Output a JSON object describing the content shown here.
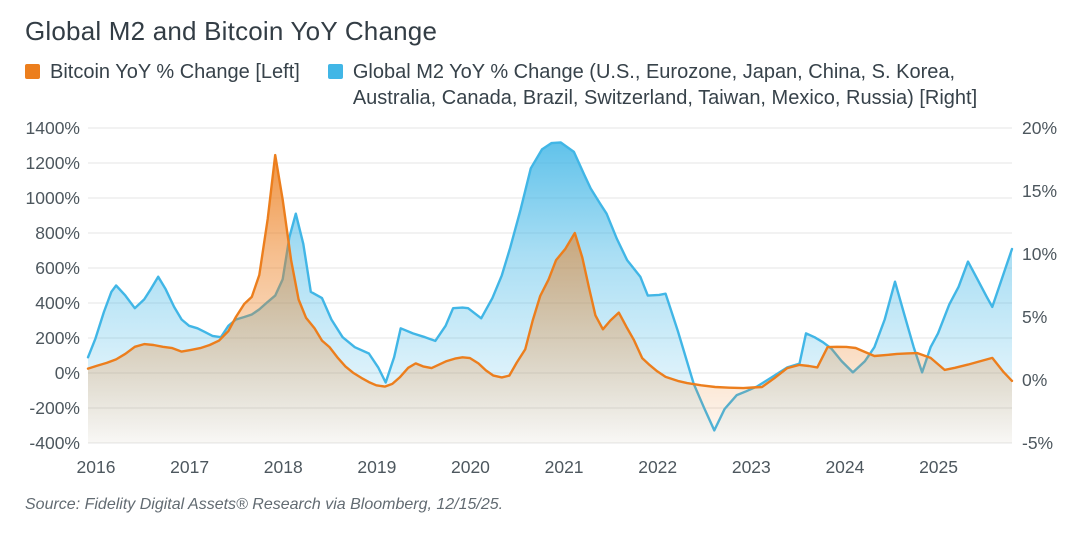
{
  "title": "Global M2 and Bitcoin YoY Change",
  "source": "Source: Fidelity Digital Assets® Research via Bloomberg, 12/15/25.",
  "legend": [
    {
      "label": "Bitcoin YoY % Change [Left]",
      "color": "#EC7E1D"
    },
    {
      "label": "Global M2 YoY % Change (U.S., Eurozone, Japan, China, S. Korea, Australia, Canada, Brazil, Switzerland, Taiwan, Mexico, Russia) [Right]",
      "color": "#41B6E6"
    }
  ],
  "colors": {
    "bitcoin_line": "#EC7E1D",
    "m2_line": "#41B6E6",
    "grid": "#e4e4e4",
    "axis_text": "#4d575e",
    "title_text": "#333d45"
  },
  "chart_data": {
    "type": "area",
    "title": "Global M2 and Bitcoin YoY Change",
    "grid": "horizontal",
    "legend_position": "top",
    "x_axis": {
      "min": 2016,
      "max": 2025.87,
      "ticks": [
        {
          "label": "2016",
          "value": 2016
        },
        {
          "label": "2017",
          "value": 2017
        },
        {
          "label": "2018",
          "value": 2018
        },
        {
          "label": "2019",
          "value": 2019
        },
        {
          "label": "2020",
          "value": 2020
        },
        {
          "label": "2021",
          "value": 2021
        },
        {
          "label": "2022",
          "value": 2022
        },
        {
          "label": "2023",
          "value": 2023
        },
        {
          "label": "2024",
          "value": 2024
        },
        {
          "label": "2025",
          "value": 2025
        }
      ]
    },
    "left_axis": {
      "series": "Bitcoin YoY % Change",
      "min": -400,
      "max": 1400,
      "ticks": [
        {
          "label": "1400%",
          "value": 1400
        },
        {
          "label": "1200%",
          "value": 1200
        },
        {
          "label": "1000%",
          "value": 1000
        },
        {
          "label": "800%",
          "value": 800
        },
        {
          "label": "600%",
          "value": 600
        },
        {
          "label": "400%",
          "value": 400
        },
        {
          "label": "200%",
          "value": 200
        },
        {
          "label": "0%",
          "value": 0
        },
        {
          "label": "-200%",
          "value": -200
        },
        {
          "label": "-400%",
          "value": -400
        }
      ]
    },
    "right_axis": {
      "series": "Global M2 YoY % Change",
      "min": -5,
      "max": 20,
      "ticks": [
        {
          "label": "20%",
          "value": 20
        },
        {
          "label": "15%",
          "value": 15
        },
        {
          "label": "10%",
          "value": 10
        },
        {
          "label": "5%",
          "value": 5
        },
        {
          "label": "0%",
          "value": 0
        },
        {
          "label": "-5%",
          "value": -5
        }
      ]
    },
    "series": [
      {
        "name": "Bitcoin YoY % Change [Left]",
        "axis": "left",
        "color": "#EC7E1D",
        "points": [
          [
            2016.0,
            25
          ],
          [
            2016.1,
            42
          ],
          [
            2016.2,
            58
          ],
          [
            2016.3,
            78
          ],
          [
            2016.4,
            110
          ],
          [
            2016.5,
            150
          ],
          [
            2016.6,
            165
          ],
          [
            2016.7,
            160
          ],
          [
            2016.8,
            150
          ],
          [
            2016.9,
            142
          ],
          [
            2017.0,
            122
          ],
          [
            2017.1,
            132
          ],
          [
            2017.2,
            142
          ],
          [
            2017.3,
            160
          ],
          [
            2017.4,
            185
          ],
          [
            2017.5,
            240
          ],
          [
            2017.58,
            320
          ],
          [
            2017.67,
            395
          ],
          [
            2017.75,
            435
          ],
          [
            2017.83,
            560
          ],
          [
            2017.92,
            880
          ],
          [
            2018.0,
            1245
          ],
          [
            2018.08,
            990
          ],
          [
            2018.17,
            645
          ],
          [
            2018.25,
            420
          ],
          [
            2018.33,
            315
          ],
          [
            2018.42,
            255
          ],
          [
            2018.5,
            185
          ],
          [
            2018.58,
            148
          ],
          [
            2018.67,
            85
          ],
          [
            2018.75,
            38
          ],
          [
            2018.83,
            2
          ],
          [
            2018.92,
            -28
          ],
          [
            2019.0,
            -52
          ],
          [
            2019.08,
            -70
          ],
          [
            2019.17,
            -78
          ],
          [
            2019.25,
            -62
          ],
          [
            2019.33,
            -25
          ],
          [
            2019.42,
            30
          ],
          [
            2019.5,
            55
          ],
          [
            2019.58,
            38
          ],
          [
            2019.67,
            28
          ],
          [
            2019.75,
            48
          ],
          [
            2019.83,
            68
          ],
          [
            2019.92,
            82
          ],
          [
            2020.0,
            90
          ],
          [
            2020.08,
            85
          ],
          [
            2020.17,
            55
          ],
          [
            2020.25,
            15
          ],
          [
            2020.33,
            -15
          ],
          [
            2020.42,
            -25
          ],
          [
            2020.5,
            -15
          ],
          [
            2020.58,
            60
          ],
          [
            2020.67,
            135
          ],
          [
            2020.75,
            300
          ],
          [
            2020.83,
            440
          ],
          [
            2020.92,
            535
          ],
          [
            2021.0,
            645
          ],
          [
            2021.1,
            710
          ],
          [
            2021.2,
            800
          ],
          [
            2021.28,
            660
          ],
          [
            2021.35,
            490
          ],
          [
            2021.42,
            330
          ],
          [
            2021.5,
            250
          ],
          [
            2021.58,
            300
          ],
          [
            2021.67,
            345
          ],
          [
            2021.75,
            265
          ],
          [
            2021.83,
            190
          ],
          [
            2021.92,
            85
          ],
          [
            2022.0,
            45
          ],
          [
            2022.08,
            10
          ],
          [
            2022.17,
            -22
          ],
          [
            2022.3,
            -45
          ],
          [
            2022.4,
            -58
          ],
          [
            2022.55,
            -70
          ],
          [
            2022.7,
            -80
          ],
          [
            2022.85,
            -84
          ],
          [
            2023.0,
            -86
          ],
          [
            2023.1,
            -83
          ],
          [
            2023.2,
            -80
          ],
          [
            2023.33,
            -30
          ],
          [
            2023.47,
            28
          ],
          [
            2023.6,
            46
          ],
          [
            2023.7,
            40
          ],
          [
            2023.79,
            32
          ],
          [
            2023.9,
            148
          ],
          [
            2024.0,
            150
          ],
          [
            2024.1,
            149
          ],
          [
            2024.2,
            143
          ],
          [
            2024.3,
            120
          ],
          [
            2024.4,
            97
          ],
          [
            2024.55,
            104
          ],
          [
            2024.64,
            109
          ],
          [
            2024.75,
            112
          ],
          [
            2024.86,
            114
          ],
          [
            2025.0,
            86
          ],
          [
            2025.15,
            18
          ],
          [
            2025.26,
            30
          ],
          [
            2025.4,
            48
          ],
          [
            2025.5,
            63
          ],
          [
            2025.66,
            86
          ],
          [
            2025.78,
            5
          ],
          [
            2025.87,
            -45
          ]
        ]
      },
      {
        "name": "Global M2 YoY % Change [Right]",
        "axis": "right",
        "color": "#41B6E6",
        "points": [
          [
            2016.0,
            1.8
          ],
          [
            2016.08,
            3.3
          ],
          [
            2016.17,
            5.4
          ],
          [
            2016.25,
            7.0
          ],
          [
            2016.3,
            7.5
          ],
          [
            2016.4,
            6.7
          ],
          [
            2016.5,
            5.7
          ],
          [
            2016.6,
            6.4
          ],
          [
            2016.67,
            7.2
          ],
          [
            2016.75,
            8.2
          ],
          [
            2016.83,
            7.2
          ],
          [
            2016.92,
            5.8
          ],
          [
            2017.0,
            4.8
          ],
          [
            2017.08,
            4.3
          ],
          [
            2017.17,
            4.1
          ],
          [
            2017.25,
            3.8
          ],
          [
            2017.33,
            3.5
          ],
          [
            2017.42,
            3.4
          ],
          [
            2017.5,
            4.3
          ],
          [
            2017.58,
            4.8
          ],
          [
            2017.67,
            5.0
          ],
          [
            2017.75,
            5.2
          ],
          [
            2017.83,
            5.6
          ],
          [
            2017.92,
            6.2
          ],
          [
            2018.0,
            6.7
          ],
          [
            2018.08,
            8.0
          ],
          [
            2018.15,
            11.3
          ],
          [
            2018.22,
            13.2
          ],
          [
            2018.3,
            10.8
          ],
          [
            2018.38,
            7.0
          ],
          [
            2018.5,
            6.5
          ],
          [
            2018.6,
            4.8
          ],
          [
            2018.72,
            3.4
          ],
          [
            2018.85,
            2.6
          ],
          [
            2019.0,
            2.1
          ],
          [
            2019.1,
            1.0
          ],
          [
            2019.18,
            -0.2
          ],
          [
            2019.27,
            1.8
          ],
          [
            2019.34,
            4.1
          ],
          [
            2019.47,
            3.7
          ],
          [
            2019.6,
            3.4
          ],
          [
            2019.71,
            3.1
          ],
          [
            2019.82,
            4.3
          ],
          [
            2019.9,
            5.7
          ],
          [
            2020.0,
            5.75
          ],
          [
            2020.06,
            5.7
          ],
          [
            2020.2,
            4.9
          ],
          [
            2020.32,
            6.5
          ],
          [
            2020.42,
            8.3
          ],
          [
            2020.51,
            10.5
          ],
          [
            2020.62,
            13.5
          ],
          [
            2020.73,
            16.8
          ],
          [
            2020.85,
            18.3
          ],
          [
            2020.95,
            18.8
          ],
          [
            2021.05,
            18.85
          ],
          [
            2021.19,
            18.1
          ],
          [
            2021.3,
            16.3
          ],
          [
            2021.37,
            15.2
          ],
          [
            2021.47,
            14.0
          ],
          [
            2021.54,
            13.2
          ],
          [
            2021.65,
            11.2
          ],
          [
            2021.76,
            9.5
          ],
          [
            2021.9,
            8.2
          ],
          [
            2021.98,
            6.7
          ],
          [
            2022.1,
            6.75
          ],
          [
            2022.17,
            6.85
          ],
          [
            2022.3,
            3.9
          ],
          [
            2022.47,
            -0.3
          ],
          [
            2022.58,
            -2.2
          ],
          [
            2022.69,
            -4.0
          ],
          [
            2022.8,
            -2.3
          ],
          [
            2022.93,
            -1.2
          ],
          [
            2023.03,
            -0.9
          ],
          [
            2023.15,
            -0.5
          ],
          [
            2023.3,
            0.2
          ],
          [
            2023.47,
            1.0
          ],
          [
            2023.6,
            1.3
          ],
          [
            2023.67,
            3.7
          ],
          [
            2023.76,
            3.4
          ],
          [
            2023.85,
            3.0
          ],
          [
            2023.94,
            2.5
          ],
          [
            2024.05,
            1.5
          ],
          [
            2024.17,
            0.6
          ],
          [
            2024.3,
            1.5
          ],
          [
            2024.4,
            2.6
          ],
          [
            2024.51,
            4.8
          ],
          [
            2024.62,
            7.8
          ],
          [
            2024.72,
            5.2
          ],
          [
            2024.82,
            2.6
          ],
          [
            2024.91,
            0.6
          ],
          [
            2025.0,
            2.6
          ],
          [
            2025.08,
            3.7
          ],
          [
            2025.2,
            6.0
          ],
          [
            2025.3,
            7.4
          ],
          [
            2025.4,
            9.4
          ],
          [
            2025.5,
            8.0
          ],
          [
            2025.6,
            6.6
          ],
          [
            2025.66,
            5.8
          ],
          [
            2025.76,
            8.0
          ],
          [
            2025.87,
            10.4
          ]
        ]
      }
    ]
  }
}
